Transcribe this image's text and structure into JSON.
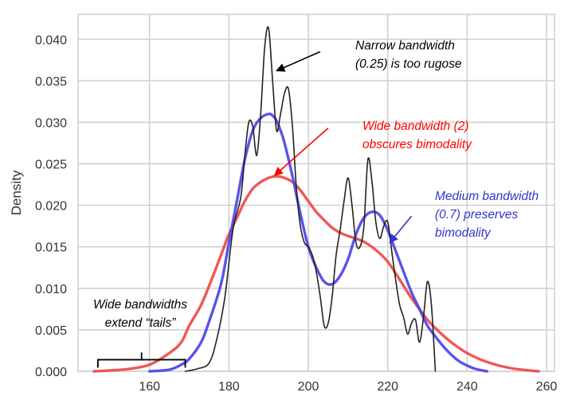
{
  "chart_data": {
    "type": "line",
    "title": "",
    "xlabel": "",
    "ylabel": "Density",
    "xlim": [
      142,
      262
    ],
    "ylim": [
      0,
      0.043
    ],
    "x_ticks": [
      {
        "value": 160,
        "label": "160"
      },
      {
        "value": 180,
        "label": "180"
      },
      {
        "value": 200,
        "label": "200"
      },
      {
        "value": 220,
        "label": "220"
      },
      {
        "value": 240,
        "label": "240"
      },
      {
        "value": 260,
        "label": "260"
      }
    ],
    "y_ticks": [
      {
        "value": 0.0,
        "label": "0.000"
      },
      {
        "value": 0.005,
        "label": "0.005"
      },
      {
        "value": 0.01,
        "label": "0.010"
      },
      {
        "value": 0.015,
        "label": "0.015"
      },
      {
        "value": 0.02,
        "label": "0.020"
      },
      {
        "value": 0.025,
        "label": "0.025"
      },
      {
        "value": 0.03,
        "label": "0.030"
      },
      {
        "value": 0.035,
        "label": "0.035"
      },
      {
        "value": 0.04,
        "label": "0.040"
      }
    ],
    "grid": true,
    "series": [
      {
        "key": "narrow",
        "color": "#222222",
        "x": [
          169,
          172,
          175,
          177,
          179,
          181,
          183,
          184,
          185,
          186,
          187,
          188,
          189,
          190,
          191,
          192,
          193,
          194,
          195,
          196,
          197,
          198,
          199,
          200,
          201,
          202,
          203,
          204,
          205,
          206,
          207,
          208,
          209,
          210,
          211,
          212,
          213,
          214,
          215,
          216,
          217,
          218,
          219,
          220,
          221,
          222,
          223,
          224,
          225,
          226,
          227,
          228,
          229,
          230,
          231,
          232
        ],
        "y": [
          0.0,
          0.0003,
          0.001,
          0.004,
          0.009,
          0.017,
          0.021,
          0.026,
          0.03,
          0.0295,
          0.026,
          0.031,
          0.039,
          0.0413,
          0.035,
          0.029,
          0.031,
          0.0335,
          0.034,
          0.0295,
          0.022,
          0.0175,
          0.0155,
          0.015,
          0.014,
          0.012,
          0.009,
          0.0055,
          0.0058,
          0.009,
          0.014,
          0.017,
          0.0205,
          0.0233,
          0.02,
          0.0155,
          0.015,
          0.0175,
          0.0255,
          0.023,
          0.018,
          0.016,
          0.0175,
          0.018,
          0.0145,
          0.011,
          0.008,
          0.0065,
          0.0045,
          0.0058,
          0.0062,
          0.0035,
          0.0065,
          0.0108,
          0.008,
          0.0
        ]
      },
      {
        "key": "medium",
        "color": "#4b45e8",
        "x": [
          160,
          165,
          168,
          170,
          173,
          175,
          178,
          180,
          182,
          184,
          186,
          188,
          190,
          191,
          192,
          193,
          194,
          196,
          198,
          200,
          202,
          204,
          206,
          208,
          210,
          212,
          214,
          216,
          218,
          220,
          222,
          224,
          226,
          228,
          230,
          232,
          234,
          236,
          238,
          240,
          242,
          245
        ],
        "y": [
          0.0,
          0.0002,
          0.0008,
          0.0015,
          0.0035,
          0.006,
          0.0105,
          0.0155,
          0.0205,
          0.0255,
          0.029,
          0.0305,
          0.031,
          0.0308,
          0.0302,
          0.029,
          0.0275,
          0.0235,
          0.019,
          0.015,
          0.0125,
          0.0108,
          0.0105,
          0.0115,
          0.0135,
          0.0165,
          0.0185,
          0.0192,
          0.0188,
          0.017,
          0.0145,
          0.012,
          0.0095,
          0.0075,
          0.0055,
          0.0042,
          0.003,
          0.002,
          0.0012,
          0.0007,
          0.0003,
          0.0
        ]
      },
      {
        "key": "wide",
        "color": "#f04848",
        "x": [
          146,
          150,
          155,
          160,
          165,
          168,
          170,
          173,
          176,
          178,
          180,
          182,
          184,
          186,
          188,
          190,
          192,
          194,
          196,
          198,
          200,
          202,
          204,
          206,
          208,
          210,
          212,
          214,
          216,
          218,
          220,
          222,
          224,
          226,
          228,
          230,
          232,
          234,
          236,
          238,
          240,
          244,
          248,
          252,
          258
        ],
        "y": [
          0.0,
          0.0001,
          0.0003,
          0.0008,
          0.0022,
          0.0035,
          0.0055,
          0.008,
          0.0115,
          0.014,
          0.0165,
          0.0185,
          0.0205,
          0.022,
          0.0228,
          0.0233,
          0.0235,
          0.0233,
          0.0228,
          0.0218,
          0.0205,
          0.0192,
          0.0182,
          0.0173,
          0.0167,
          0.0163,
          0.016,
          0.0156,
          0.015,
          0.0142,
          0.0132,
          0.0118,
          0.0103,
          0.0088,
          0.0075,
          0.0062,
          0.0052,
          0.0043,
          0.0035,
          0.0028,
          0.0022,
          0.0013,
          0.0007,
          0.0003,
          0.0
        ]
      }
    ],
    "annotations": [
      {
        "key": "narrow",
        "color": "#000000",
        "lines": [
          "Narrow bandwidth",
          "(0.25) is too rugose"
        ],
        "anchor": "start",
        "arrow": {
          "from": [
            203,
            0.0385
          ],
          "to": [
            192,
            0.0362
          ]
        }
      },
      {
        "key": "wide",
        "color": "#ff0000",
        "lines": [
          "Wide bandwidth (2)",
          "obscures bimodality"
        ],
        "anchor": "start",
        "arrow": {
          "from": [
            205,
            0.0293
          ],
          "to": [
            191.5,
            0.0236
          ]
        }
      },
      {
        "key": "medium",
        "color": "#3333cc",
        "lines": [
          "Medium bandwidth",
          "(0.7) preserves",
          "bimodality"
        ],
        "anchor": "start",
        "arrow": {
          "from": [
            226,
            0.0187
          ],
          "to": [
            220.5,
            0.0155
          ]
        }
      },
      {
        "key": "tails",
        "color": "#000000",
        "lines": [
          "Wide bandwidths",
          "extend “tails”"
        ],
        "anchor": "middle",
        "bracket": {
          "x0": 147,
          "x1": 169,
          "y": 0.0014
        }
      }
    ]
  }
}
